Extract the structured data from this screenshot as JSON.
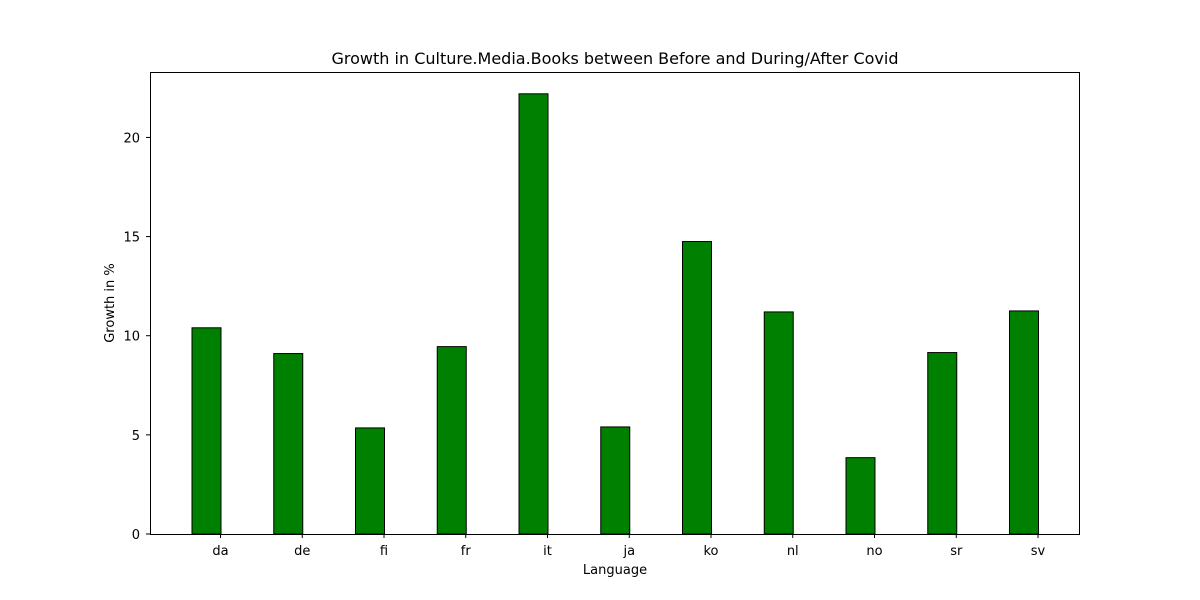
{
  "colors": {
    "bar_fill": "#008000",
    "bar_edge": "#000000",
    "background": "#ffffff"
  },
  "chart_data": {
    "type": "bar",
    "title": "Growth in Culture.Media.Books between Before and During/After Covid",
    "xlabel": "Language",
    "ylabel": "Growth in %",
    "categories": [
      "da",
      "de",
      "fi",
      "fr",
      "it",
      "ja",
      "ko",
      "nl",
      "no",
      "sr",
      "sv"
    ],
    "values": [
      10.4,
      9.1,
      5.35,
      9.45,
      22.2,
      5.4,
      14.75,
      11.2,
      3.85,
      9.15,
      11.25
    ],
    "yticks": [
      0,
      5,
      10,
      15,
      20
    ],
    "ylim": [
      0,
      23.3
    ],
    "grid": false,
    "legend": "none"
  }
}
